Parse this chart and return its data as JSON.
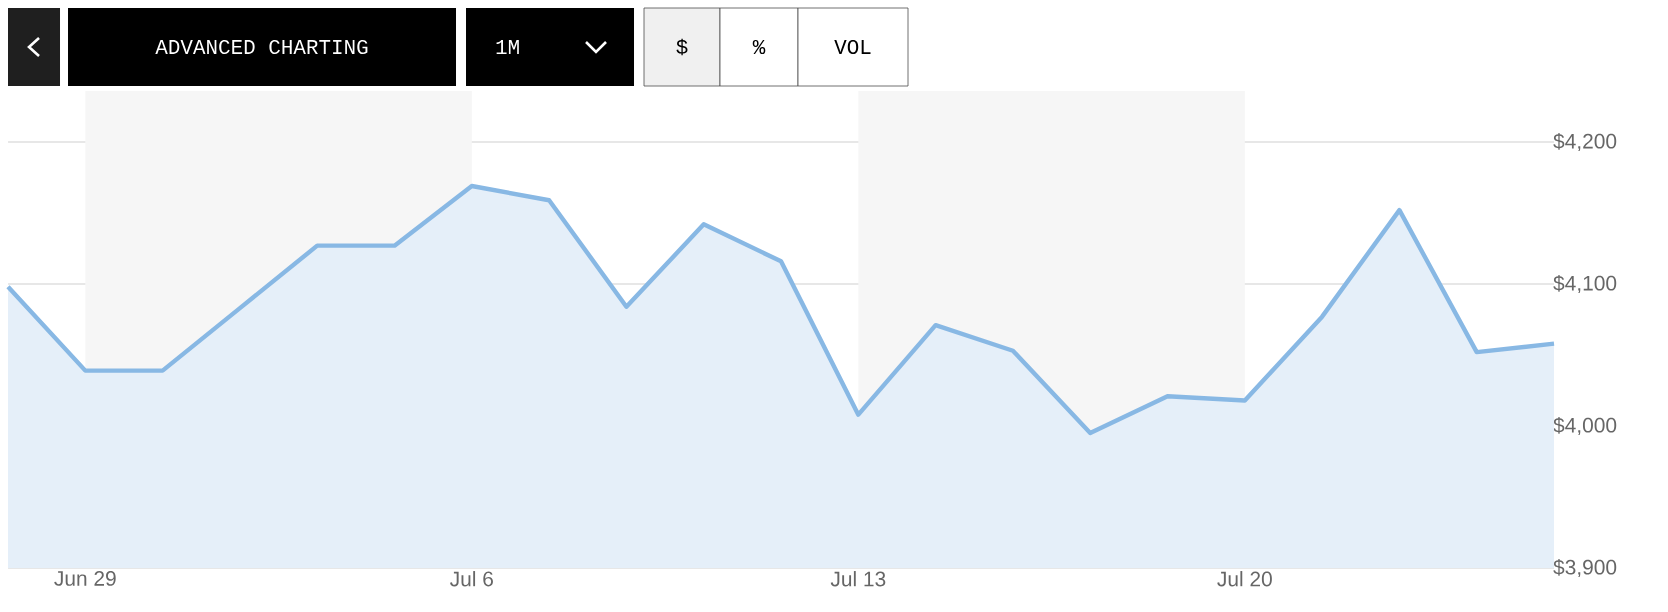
{
  "chart_data": {
    "type": "area",
    "categories": [
      null,
      "Jun 29",
      null,
      null,
      null,
      null,
      "Jul 6",
      null,
      null,
      null,
      null,
      "Jul 13",
      null,
      null,
      null,
      null,
      "Jul 20",
      null,
      null,
      null,
      null
    ],
    "values": [
      4098,
      4039,
      4039,
      4083,
      4127,
      4127,
      4169,
      4159,
      4084,
      4142,
      4116,
      4008,
      4071,
      4053,
      3995,
      4021,
      4018,
      4077,
      4152,
      4052,
      4058
    ],
    "color": "#88b8e4",
    "ylim": [
      3900,
      4200
    ],
    "yticks": [
      {
        "value": 3900,
        "label": "$3,900"
      },
      {
        "value": 4000,
        "label": "$4,000"
      },
      {
        "value": 4100,
        "label": "$4,100"
      },
      {
        "value": 4200,
        "label": "$4,200"
      }
    ],
    "grid": "y",
    "marker": "none",
    "line_style": "solid",
    "bands": [
      {
        "axis": "x",
        "from": "Jun 29",
        "to": "Jul 6",
        "color": "#f6f6f6"
      },
      {
        "axis": "x",
        "from": "Jul 13",
        "to": "Jul 20",
        "color": "#f6f6f6"
      }
    ],
    "annotations": [
      "ADVANCED CHARTING",
      "1M",
      "$",
      "%",
      "VOL"
    ]
  }
}
